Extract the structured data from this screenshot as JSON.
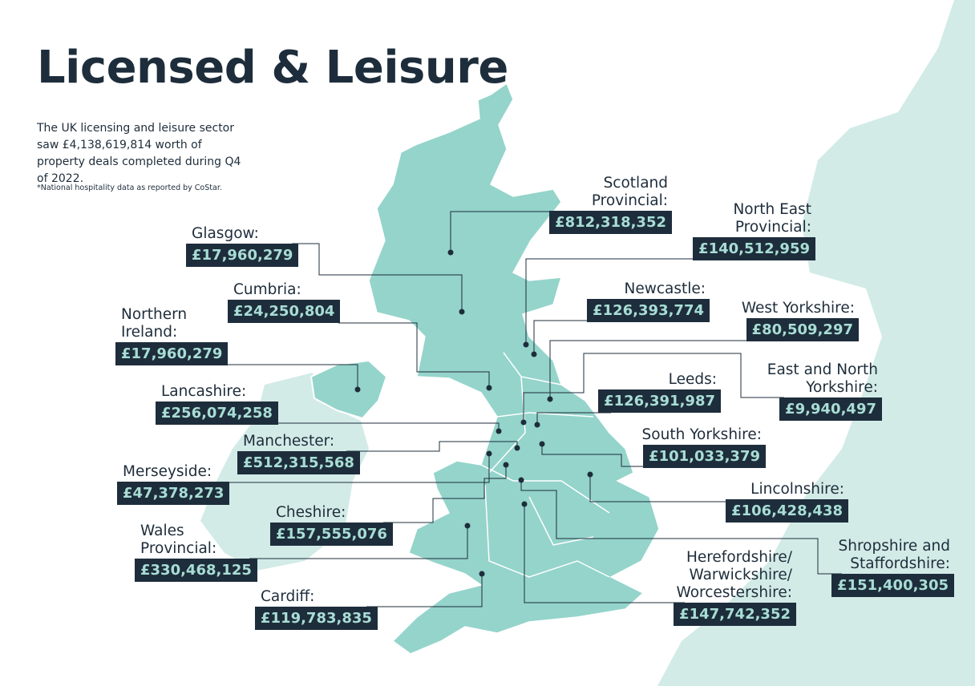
{
  "header": {
    "title": "Licensed & Leisure",
    "intro": "The UK licensing and leisure sector saw £4,138,619,814 worth of property deals completed during Q4 of 2022.",
    "note": "*National hospitality data as reported by CoStar."
  },
  "regions": [
    {
      "name": "Scotland\nProvincial:",
      "value": "£812,318,352"
    },
    {
      "name": "North East\nProvincial:",
      "value": "£140,512,959"
    },
    {
      "name": "Glasgow:",
      "value": "£17,960,279"
    },
    {
      "name": "Newcastle:",
      "value": "£126,393,774"
    },
    {
      "name": "Cumbria:",
      "value": "£24,250,804"
    },
    {
      "name": "West Yorkshire:",
      "value": "£80,509,297"
    },
    {
      "name": "Northern\nIreland:",
      "value": "£17,960,279"
    },
    {
      "name": "Leeds:",
      "value": "£126,391,987"
    },
    {
      "name": "East and North\nYorkshire:",
      "value": "£9,940,497"
    },
    {
      "name": "Lancashire:",
      "value": "£256,074,258"
    },
    {
      "name": "South Yorkshire:",
      "value": "£101,033,379"
    },
    {
      "name": "Manchester:",
      "value": "£512,315,568"
    },
    {
      "name": "Merseyside:",
      "value": "£47,378,273"
    },
    {
      "name": "Lincolnshire:",
      "value": "£106,428,438"
    },
    {
      "name": "Cheshire:",
      "value": "£157,555,076"
    },
    {
      "name": "Wales\nProvincial:",
      "value": "£330,468,125"
    },
    {
      "name": "Shropshire and\nStaffordshire:",
      "value": "£151,400,305"
    },
    {
      "name": "Herefordshire/\nWarwickshire/\nWorcestershire:",
      "value": "£147,742,352"
    },
    {
      "name": "Cardiff:",
      "value": "£119,783,835"
    }
  ]
}
